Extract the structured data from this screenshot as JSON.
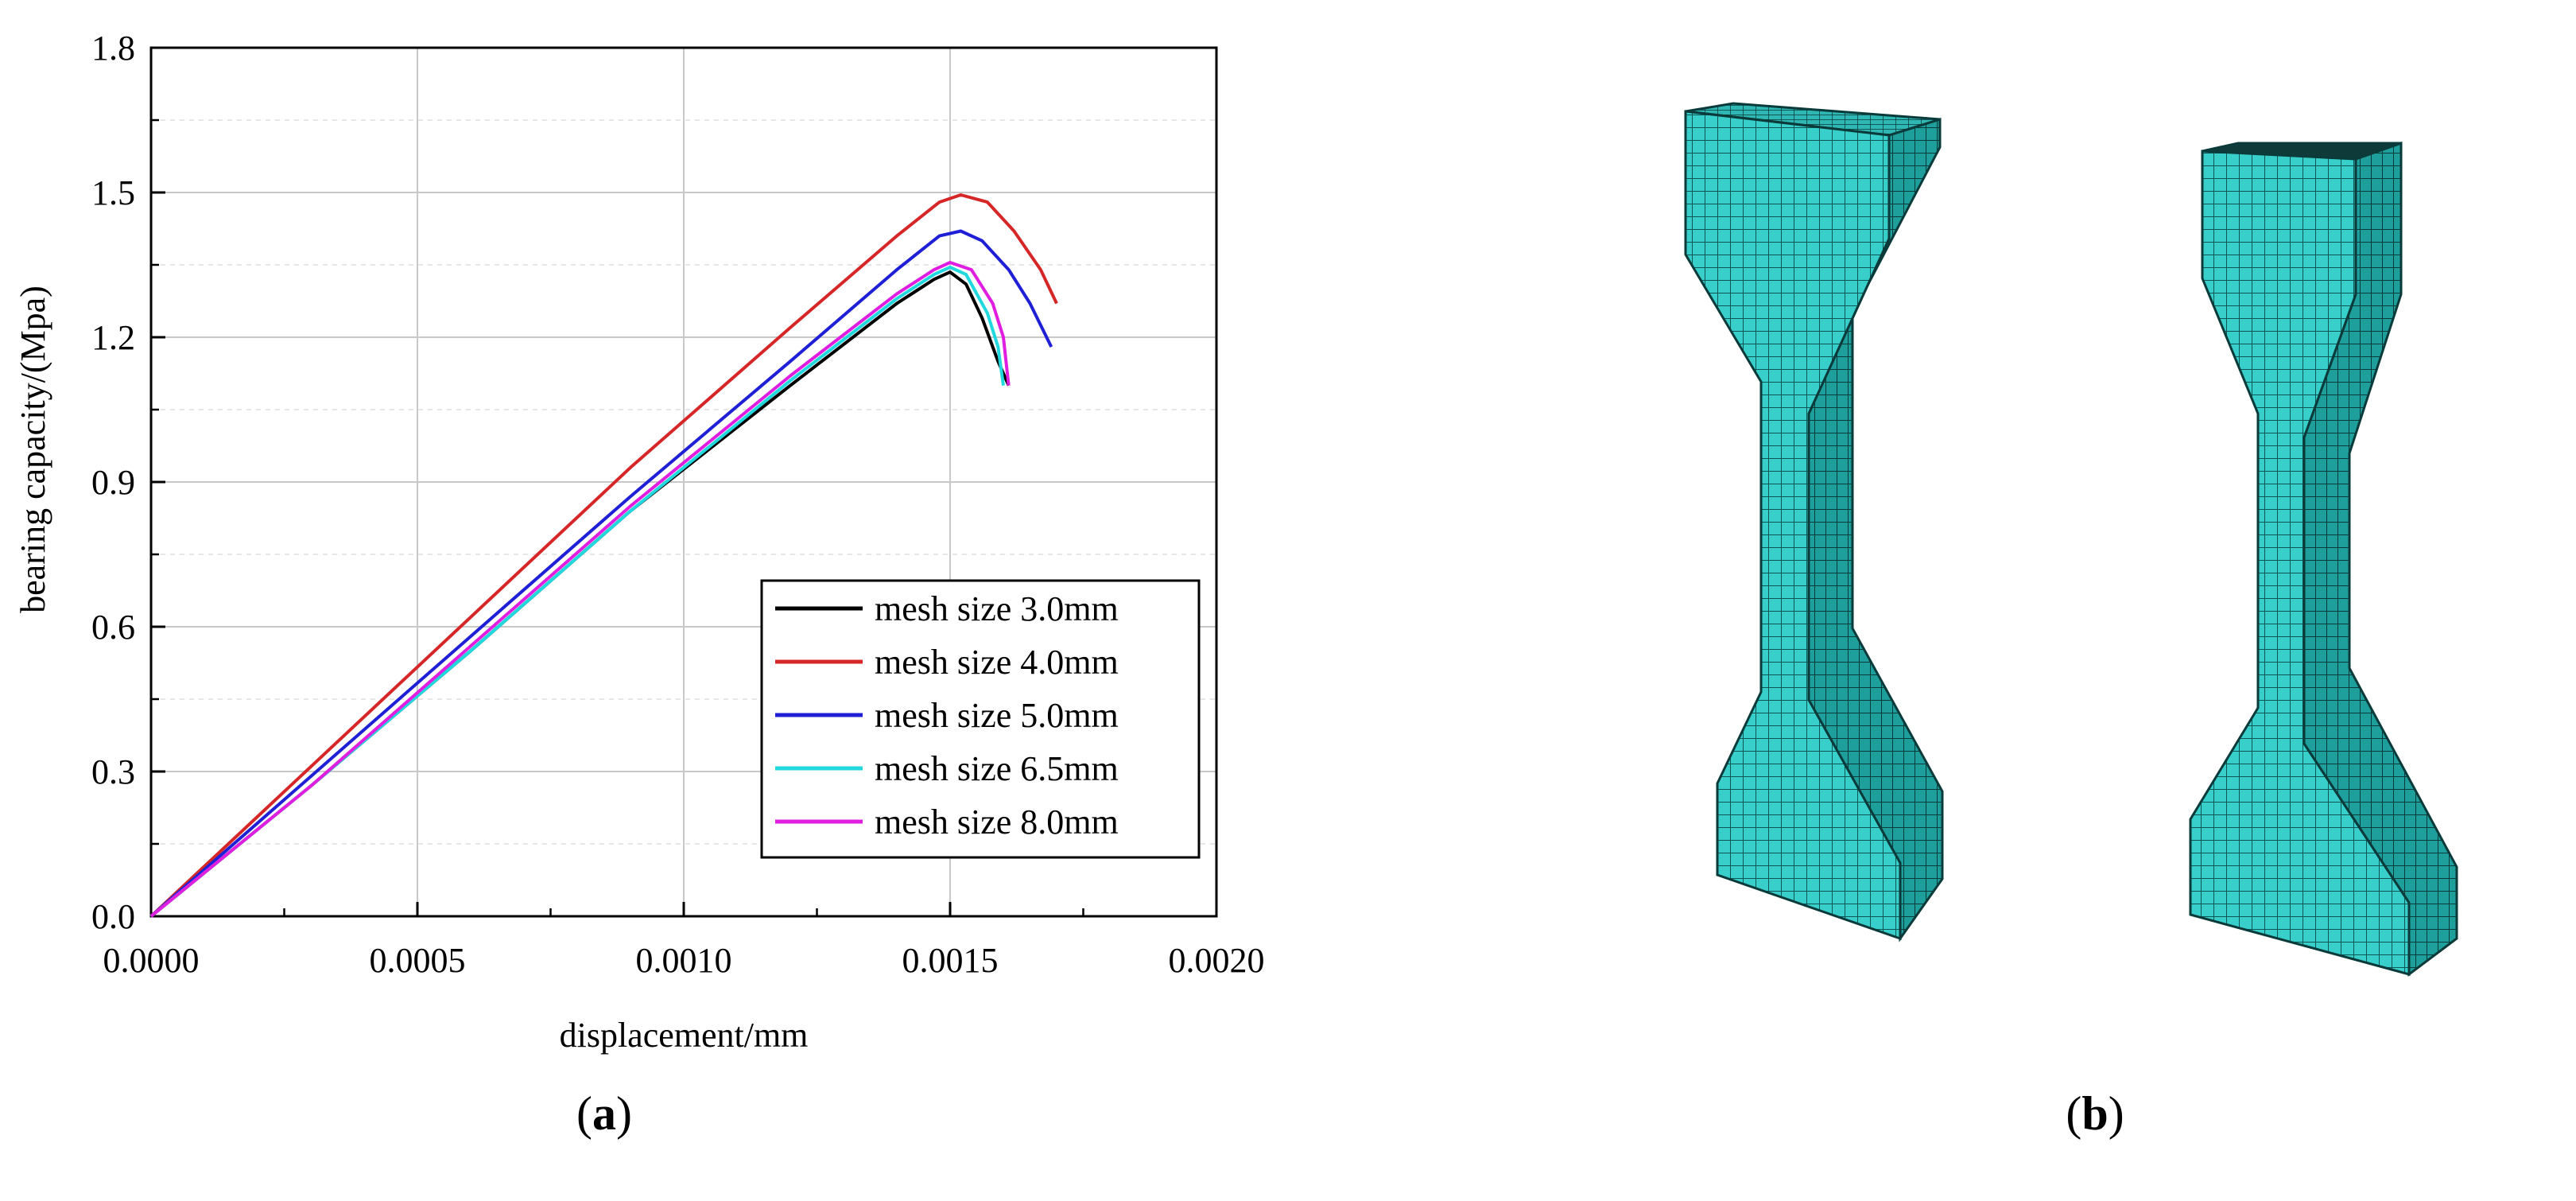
{
  "panels": {
    "a_label": "a",
    "b_label": "b"
  },
  "chart_data": {
    "type": "line",
    "xlabel": "displacement/mm",
    "ylabel": "bearing capacity/(Mpa)",
    "xlim": [
      0,
      0.002
    ],
    "ylim": [
      0,
      1.8
    ],
    "x_ticks": [
      "0.0000",
      "0.0005",
      "0.0010",
      "0.0015",
      "0.0020"
    ],
    "x_tick_values": [
      0,
      0.0005,
      0.001,
      0.0015,
      0.002
    ],
    "y_ticks": [
      "0.0",
      "0.3",
      "0.6",
      "0.9",
      "1.2",
      "1.5",
      "1.8"
    ],
    "y_tick_values": [
      0,
      0.3,
      0.6,
      0.9,
      1.2,
      1.5,
      1.8
    ],
    "grid": true,
    "legend_position": "lower-right",
    "series": [
      {
        "name": "mesh size 3.0mm",
        "color": "#000000",
        "points": [
          [
            0,
            0
          ],
          [
            0.0003,
            0.27
          ],
          [
            0.0006,
            0.55
          ],
          [
            0.0009,
            0.84
          ],
          [
            0.0012,
            1.1
          ],
          [
            0.0014,
            1.27
          ],
          [
            0.00147,
            1.32
          ],
          [
            0.0015,
            1.335
          ],
          [
            0.00153,
            1.31
          ],
          [
            0.00156,
            1.24
          ],
          [
            0.00159,
            1.15
          ],
          [
            0.00161,
            1.1
          ]
        ]
      },
      {
        "name": "mesh size 4.0mm",
        "color": "#d62728",
        "points": [
          [
            0,
            0
          ],
          [
            0.0003,
            0.31
          ],
          [
            0.0006,
            0.62
          ],
          [
            0.0009,
            0.93
          ],
          [
            0.0012,
            1.22
          ],
          [
            0.0014,
            1.41
          ],
          [
            0.00148,
            1.48
          ],
          [
            0.00152,
            1.495
          ],
          [
            0.00157,
            1.48
          ],
          [
            0.00162,
            1.42
          ],
          [
            0.00167,
            1.34
          ],
          [
            0.0017,
            1.27
          ]
        ]
      },
      {
        "name": "mesh size 5.0mm",
        "color": "#1f1fd6",
        "points": [
          [
            0,
            0
          ],
          [
            0.0003,
            0.29
          ],
          [
            0.0006,
            0.58
          ],
          [
            0.0009,
            0.87
          ],
          [
            0.0012,
            1.15
          ],
          [
            0.0014,
            1.34
          ],
          [
            0.00148,
            1.41
          ],
          [
            0.00152,
            1.42
          ],
          [
            0.00156,
            1.4
          ],
          [
            0.00161,
            1.34
          ],
          [
            0.00165,
            1.27
          ],
          [
            0.00169,
            1.18
          ]
        ]
      },
      {
        "name": "mesh size 6.5mm",
        "color": "#22d8df",
        "points": [
          [
            0,
            0
          ],
          [
            0.0003,
            0.27
          ],
          [
            0.0006,
            0.55
          ],
          [
            0.0009,
            0.84
          ],
          [
            0.0012,
            1.11
          ],
          [
            0.0014,
            1.28
          ],
          [
            0.00147,
            1.33
          ],
          [
            0.0015,
            1.345
          ],
          [
            0.00153,
            1.33
          ],
          [
            0.00157,
            1.25
          ],
          [
            0.00159,
            1.18
          ],
          [
            0.0016,
            1.1
          ]
        ]
      },
      {
        "name": "mesh size 8.0mm",
        "color": "#e01ee0",
        "points": [
          [
            0,
            0
          ],
          [
            0.0003,
            0.27
          ],
          [
            0.0006,
            0.56
          ],
          [
            0.0009,
            0.85
          ],
          [
            0.0012,
            1.12
          ],
          [
            0.0014,
            1.29
          ],
          [
            0.00147,
            1.34
          ],
          [
            0.0015,
            1.355
          ],
          [
            0.00154,
            1.34
          ],
          [
            0.00158,
            1.27
          ],
          [
            0.0016,
            1.2
          ],
          [
            0.00161,
            1.1
          ]
        ]
      }
    ]
  },
  "figure_b": {
    "mesh_color": "#35c6c2",
    "mesh_line_color": "#0d4a4a",
    "specimen_count": 2
  }
}
